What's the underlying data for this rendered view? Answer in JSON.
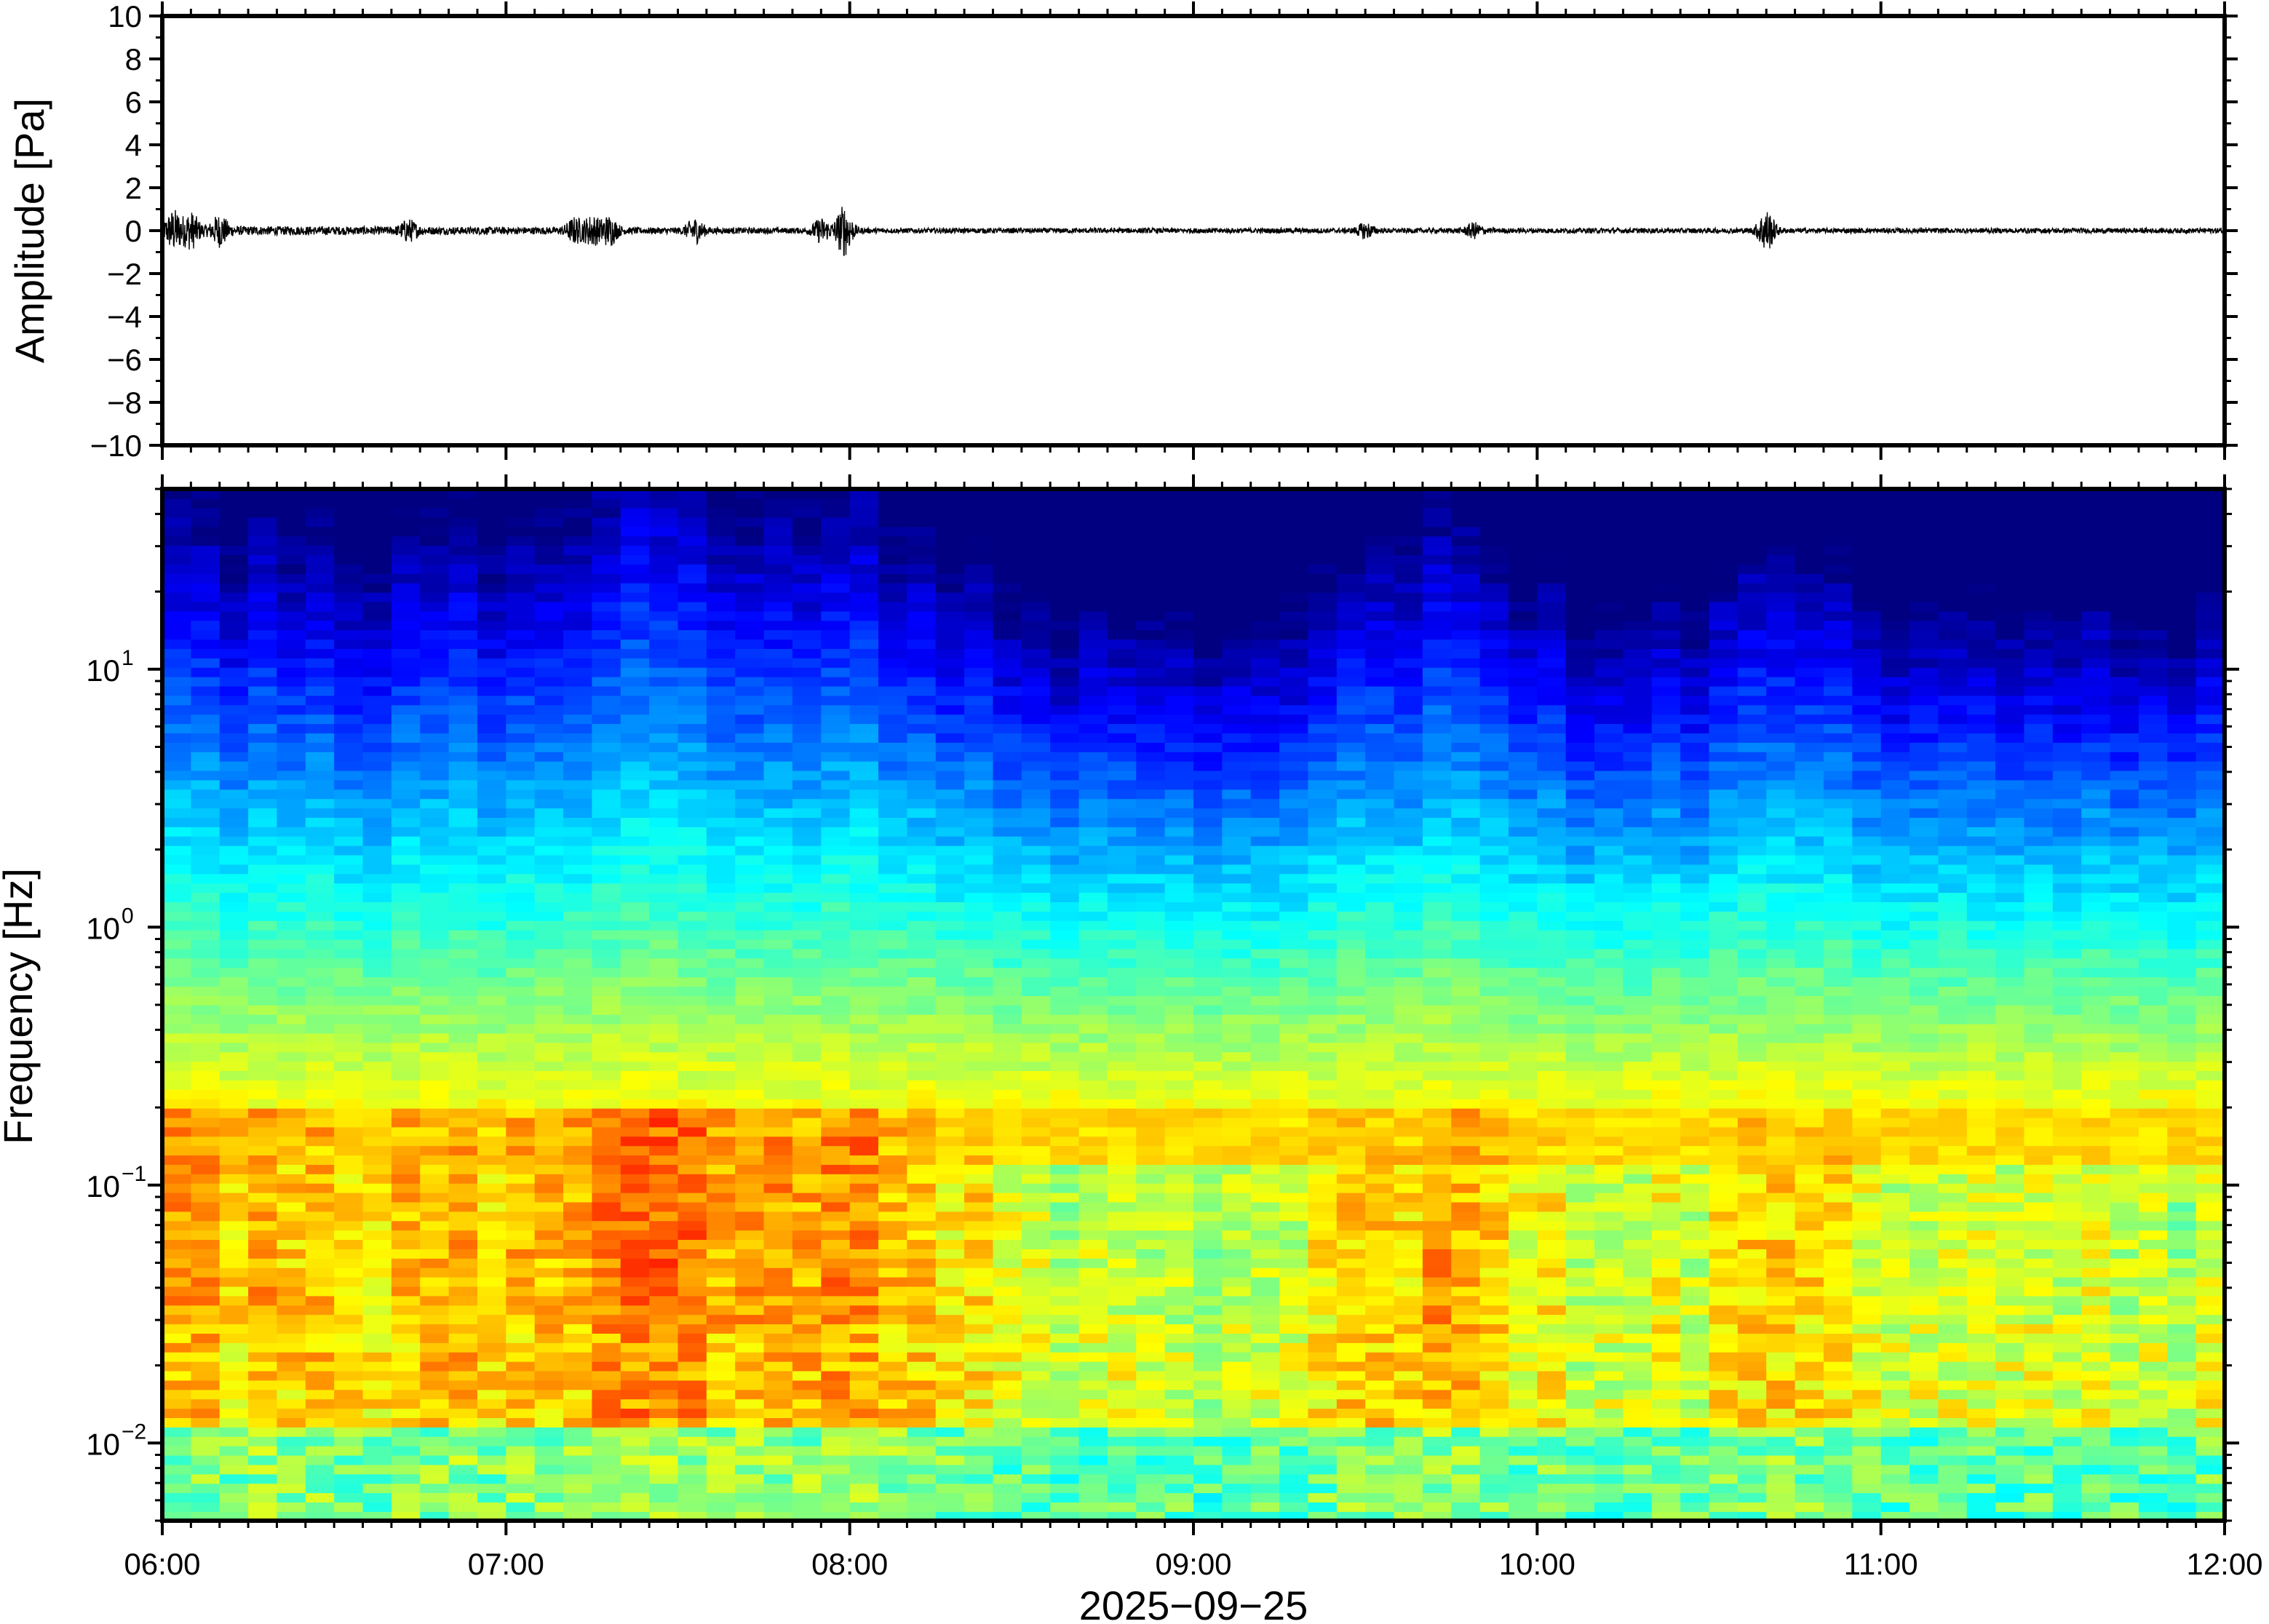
{
  "chart_data": [
    {
      "type": "line",
      "name": "waveform",
      "ylabel": "Amplitude [Pa]",
      "ylim": [
        -10,
        10
      ],
      "yticks": [
        10,
        8,
        6,
        4,
        2,
        0,
        -2,
        -4,
        -6,
        -8,
        -10
      ],
      "ytick_labels": [
        "10",
        "8",
        "6",
        "4",
        "2",
        "0",
        "−2",
        "−4",
        "−6",
        "−8",
        "−10"
      ],
      "x_start": "06:00",
      "x_end": "12:00",
      "grid": false,
      "bursts": [
        {
          "time": "06:02",
          "amplitude": 0.8
        },
        {
          "time": "06:05",
          "amplitude": 0.7
        },
        {
          "time": "06:10",
          "amplitude": 0.6
        },
        {
          "time": "06:43",
          "amplitude": 0.4
        },
        {
          "time": "07:12",
          "amplitude": 0.5
        },
        {
          "time": "07:15",
          "amplitude": 0.6
        },
        {
          "time": "07:18",
          "amplitude": 0.6
        },
        {
          "time": "07:33",
          "amplitude": 0.5
        },
        {
          "time": "07:55",
          "amplitude": 0.5
        },
        {
          "time": "07:59",
          "amplitude": 1.1
        },
        {
          "time": "09:30",
          "amplitude": 0.3
        },
        {
          "time": "09:49",
          "amplitude": 0.3
        },
        {
          "time": "10:40",
          "amplitude": 0.9
        }
      ]
    },
    {
      "type": "heatmap",
      "name": "spectrogram",
      "ylabel": "Frequency [Hz]",
      "yscale": "log",
      "ylim": [
        0.005,
        50
      ],
      "yticks": [
        10,
        1,
        0.1,
        0.01
      ],
      "ytick_labels": [
        {
          "base": "10",
          "exp": "1"
        },
        {
          "base": "10",
          "exp": "0"
        },
        {
          "base": "10",
          "exp": "−1"
        },
        {
          "base": "10",
          "exp": "−2"
        }
      ],
      "xlabel": "2025−09−25",
      "xticks": [
        "06:00",
        "07:00",
        "08:00",
        "09:00",
        "10:00",
        "11:00",
        "12:00"
      ],
      "colormap": "jet",
      "colors": {
        "low": "#0a0a7a",
        "mid": "#7fe0a0",
        "high": "#ef3a2c"
      },
      "time_profile": [
        {
          "time": "06:00",
          "activity": 0.75
        },
        {
          "time": "06:30",
          "activity": 0.65
        },
        {
          "time": "07:00",
          "activity": 0.7
        },
        {
          "time": "07:20",
          "activity": 0.9
        },
        {
          "time": "07:40",
          "activity": 0.85
        },
        {
          "time": "08:00",
          "activity": 0.8
        },
        {
          "time": "08:30",
          "activity": 0.4
        },
        {
          "time": "08:45",
          "activity": 0.25
        },
        {
          "time": "09:15",
          "activity": 0.35
        },
        {
          "time": "09:30",
          "activity": 0.6
        },
        {
          "time": "09:50",
          "activity": 0.7
        },
        {
          "time": "10:15",
          "activity": 0.25
        },
        {
          "time": "10:40",
          "activity": 0.6
        },
        {
          "time": "11:00",
          "activity": 0.4
        },
        {
          "time": "11:30",
          "activity": 0.35
        },
        {
          "time": "12:00",
          "activity": 0.3
        }
      ],
      "microseism_band_hz": [
        0.03,
        0.2
      ]
    }
  ]
}
